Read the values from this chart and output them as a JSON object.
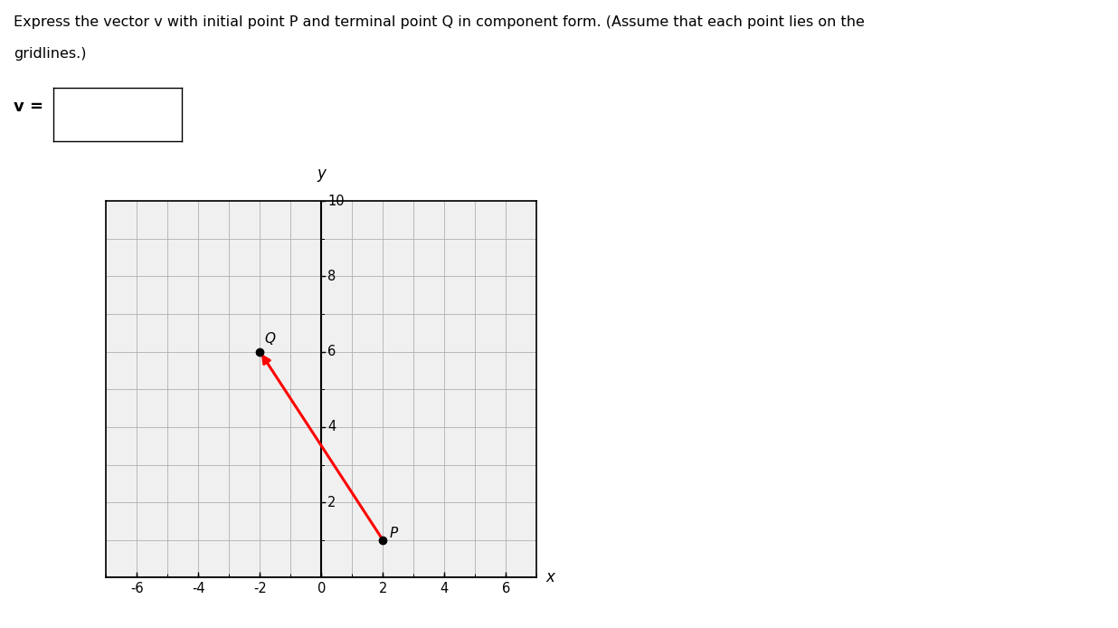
{
  "title_line1": "Express the vector v with initial point P and terminal point Q in component form. (Assume that each point lies on the",
  "title_line2": "gridlines.)",
  "P": [
    2,
    1
  ],
  "Q": [
    -2,
    6
  ],
  "xlim": [
    -7,
    7
  ],
  "ylim": [
    0,
    10
  ],
  "xticks": [
    -6,
    -4,
    -2,
    0,
    2,
    4,
    6
  ],
  "yticks": [
    2,
    4,
    6,
    8,
    10
  ],
  "xlabel": "x",
  "ylabel": "y",
  "arrow_color": "#ff0000",
  "point_color": "#000000",
  "grid_color": "#b0b0b0",
  "bg_color": "#ffffff",
  "plot_bg_color": "#f0f0f0"
}
